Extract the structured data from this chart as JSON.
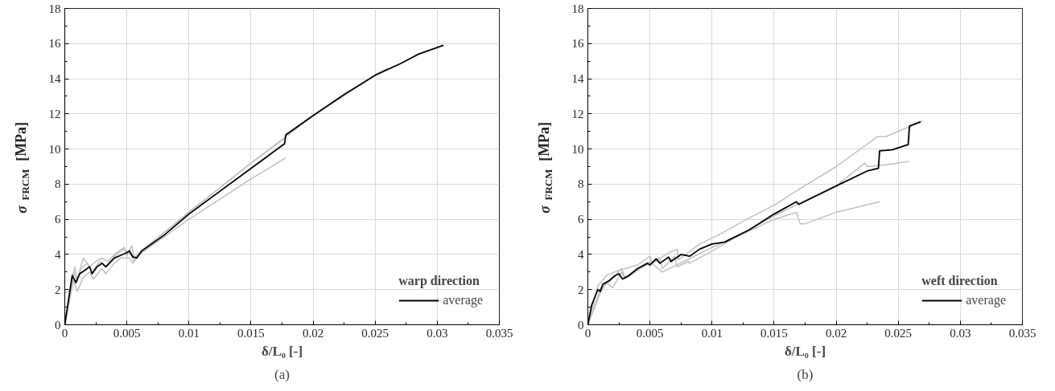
{
  "chart_data": [
    {
      "type": "line",
      "xlabel": "δ/L₀ [-]",
      "ylabel": "σ$_{FRCM}$ [MPa]",
      "legend_title": "warp direction",
      "annotations": [
        "(a)"
      ],
      "xlim": [
        0,
        0.035
      ],
      "ylim": [
        0,
        18
      ],
      "xticks": [
        0,
        0.005,
        0.01,
        0.015,
        0.02,
        0.025,
        0.03,
        0.035
      ],
      "yticks": [
        0,
        2,
        4,
        6,
        8,
        10,
        12,
        14,
        16,
        18
      ],
      "grid": true,
      "legend": "bottom right",
      "line_style": "solid",
      "series": [
        {
          "color": "#c0c0c0",
          "x": [
            0,
            0.0005,
            0.0008,
            0.001,
            0.0015,
            0.002,
            0.0025,
            0.003,
            0.0035,
            0.004,
            0.0048,
            0.005,
            0.0054,
            0.0056,
            0.006,
            0.01,
            0.015,
            0.0178,
            0.02,
            0.025,
            0.026
          ],
          "values": [
            1.8,
            2.0,
            3.3,
            2.6,
            3.8,
            3.3,
            3.6,
            3.8,
            3.6,
            4.0,
            4.4,
            3.9,
            4.5,
            3.8,
            4.1,
            6.4,
            9.2,
            10.7,
            11.9,
            14.2,
            14.6
          ]
        },
        {
          "color": "#c0c0c0",
          "x": [
            0,
            0.0007,
            0.001,
            0.0015,
            0.002,
            0.0023,
            0.003,
            0.0033,
            0.004,
            0.0045,
            0.0052,
            0.0055,
            0.006,
            0.01,
            0.015,
            0.0178
          ],
          "values": [
            0,
            2.5,
            1.9,
            2.7,
            3.0,
            2.6,
            3.2,
            2.9,
            3.5,
            3.8,
            3.8,
            3.5,
            4.0,
            6.0,
            8.3,
            9.5
          ]
        },
        {
          "color": "#c0c0c0",
          "x": [
            0,
            0.0007,
            0.001,
            0.0013,
            0.0018,
            0.0022,
            0.0028,
            0.0033,
            0.004,
            0.0047,
            0.0053,
            0.0056,
            0.006,
            0.01,
            0.015,
            0.0177
          ],
          "values": [
            0,
            3.0,
            2.5,
            3.2,
            3.5,
            3.0,
            3.6,
            3.3,
            3.9,
            4.3,
            4.0,
            3.6,
            4.1,
            6.4,
            9.2,
            10.6
          ]
        },
        {
          "name": "average",
          "color": "#000000",
          "x": [
            0,
            0.0006,
            0.0009,
            0.0012,
            0.0016,
            0.002,
            0.0022,
            0.0026,
            0.003,
            0.0033,
            0.004,
            0.0045,
            0.005,
            0.0052,
            0.0055,
            0.0058,
            0.0062,
            0.008,
            0.01,
            0.0125,
            0.015,
            0.0177,
            0.0178,
            0.02,
            0.0225,
            0.025,
            0.027,
            0.0285,
            0.0305
          ],
          "values": [
            0,
            2.8,
            2.4,
            2.9,
            3.1,
            3.3,
            2.9,
            3.3,
            3.5,
            3.3,
            3.8,
            3.95,
            4.1,
            4.2,
            3.85,
            3.8,
            4.2,
            5.1,
            6.3,
            7.6,
            8.9,
            10.3,
            10.8,
            11.9,
            13.1,
            14.2,
            14.85,
            15.4,
            15.9
          ]
        }
      ]
    },
    {
      "type": "line",
      "xlabel": "δ/L₀ [-]",
      "ylabel": "σ$_{FRCM}$ [MPa]",
      "legend_title": "weft direction",
      "annotations": [
        "(b)"
      ],
      "xlim": [
        0,
        0.035
      ],
      "ylim": [
        0,
        18
      ],
      "xticks": [
        0,
        0.005,
        0.01,
        0.015,
        0.02,
        0.025,
        0.03,
        0.035
      ],
      "yticks": [
        0,
        2,
        4,
        6,
        8,
        10,
        12,
        14,
        16,
        18
      ],
      "grid": true,
      "legend": "bottom right",
      "line_style": "solid",
      "series": [
        {
          "color": "#c0c0c0",
          "x": [
            0,
            0.0008,
            0.0015,
            0.0025,
            0.004,
            0.005,
            0.0052,
            0.0065,
            0.0072,
            0.0073,
            0.009,
            0.0105,
            0.0128,
            0.015,
            0.017,
            0.02,
            0.0233,
            0.024,
            0.027
          ],
          "values": [
            0,
            2.2,
            2.8,
            3.1,
            3.4,
            3.9,
            3.5,
            4.1,
            4.3,
            3.7,
            4.6,
            5.1,
            6.0,
            6.8,
            7.7,
            9.0,
            10.7,
            10.7,
            11.6
          ]
        },
        {
          "color": "#c0c0c0",
          "x": [
            0,
            0.001,
            0.0018,
            0.0027,
            0.003,
            0.005,
            0.0058,
            0.006,
            0.007,
            0.0072,
            0.0081,
            0.0082,
            0.01,
            0.0125,
            0.015,
            0.017,
            0.02,
            0.0223,
            0.0225,
            0.024,
            0.0259
          ],
          "values": [
            0,
            2.0,
            2.5,
            3.2,
            2.7,
            3.5,
            3.8,
            3.2,
            3.9,
            3.3,
            3.6,
            3.5,
            4.2,
            5.2,
            6.2,
            6.9,
            7.9,
            9.2,
            9.0,
            9.1,
            9.3
          ]
        },
        {
          "color": "#c0c0c0",
          "x": [
            0,
            0.001,
            0.0015,
            0.002,
            0.0027,
            0.003,
            0.005,
            0.006,
            0.008,
            0.01,
            0.012,
            0.015,
            0.0168,
            0.0171,
            0.0175,
            0.02,
            0.0235
          ],
          "values": [
            0,
            1.8,
            2.4,
            2.1,
            3.0,
            2.6,
            3.6,
            3.0,
            3.7,
            4.4,
            5.0,
            6.0,
            6.4,
            5.75,
            5.75,
            6.4,
            7.0
          ]
        },
        {
          "name": "average",
          "color": "#000000",
          "x": [
            0,
            0.0003,
            0.0008,
            0.001,
            0.0012,
            0.0017,
            0.0022,
            0.0025,
            0.0028,
            0.0033,
            0.004,
            0.0048,
            0.005,
            0.0055,
            0.0058,
            0.0065,
            0.0067,
            0.0075,
            0.0082,
            0.009,
            0.01,
            0.011,
            0.013,
            0.015,
            0.0168,
            0.017,
            0.02,
            0.0225,
            0.0234,
            0.0235,
            0.0245,
            0.0258,
            0.0259,
            0.0268
          ],
          "values": [
            0,
            1.1,
            2.0,
            1.9,
            2.3,
            2.5,
            2.8,
            2.9,
            2.6,
            2.8,
            3.2,
            3.5,
            3.4,
            3.75,
            3.5,
            3.85,
            3.6,
            4.0,
            3.9,
            4.3,
            4.6,
            4.7,
            5.4,
            6.3,
            7.0,
            6.85,
            7.9,
            8.75,
            8.9,
            9.9,
            9.95,
            10.25,
            11.3,
            11.55
          ]
        }
      ]
    }
  ]
}
